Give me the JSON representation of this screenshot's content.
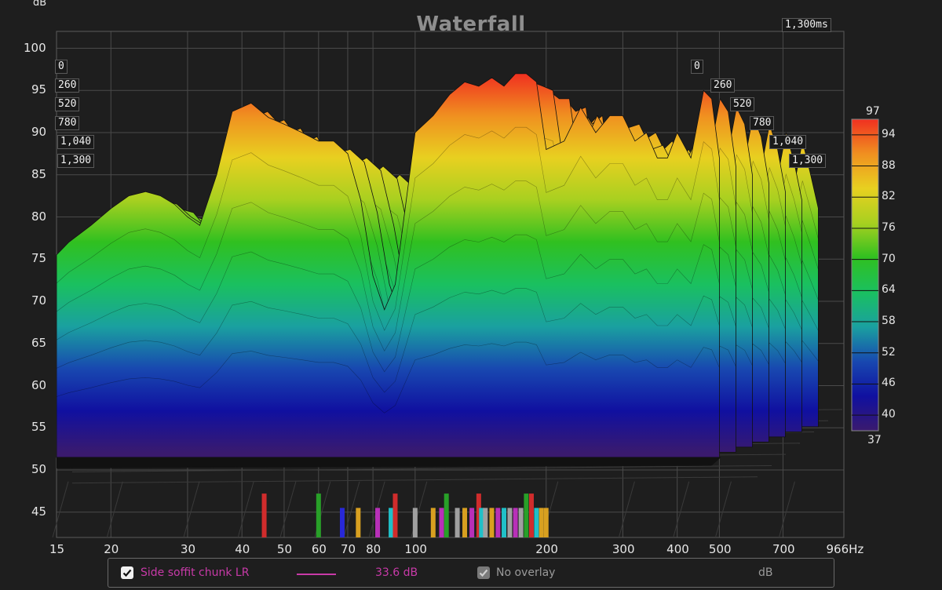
{
  "chart_data": {
    "type": "waterfall",
    "title": "Waterfall",
    "ylabel": "dB",
    "xunit": "Hz",
    "zunit": "ms",
    "x_scale": "log",
    "xlim": [
      15,
      966
    ],
    "ylim": [
      42,
      102
    ],
    "x_ticks": [
      "15",
      "20",
      "30",
      "40",
      "50",
      "60",
      "70",
      "80",
      "100",
      "200",
      "300",
      "400",
      "500",
      "700",
      "966Hz"
    ],
    "y_ticks": [
      "45",
      "50",
      "55",
      "60",
      "65",
      "70",
      "75",
      "80",
      "85",
      "90",
      "95",
      "100"
    ],
    "time_ticks": [
      "0",
      "260",
      "520",
      "780",
      "1,040",
      "1,300"
    ],
    "time_max_label": "1,300ms",
    "colorbar": {
      "range": [
        37,
        97
      ],
      "max_label": "97",
      "min_label": "37",
      "ticks": [
        "94",
        "88",
        "82",
        "76",
        "70",
        "64",
        "58",
        "52",
        "46",
        "40"
      ]
    },
    "front_slice": {
      "time_ms": 0,
      "freq": [
        15,
        16,
        18,
        20,
        22,
        24,
        26,
        28,
        30,
        32,
        35,
        38,
        42,
        46,
        50,
        55,
        60,
        65,
        70,
        75,
        80,
        85,
        90,
        100,
        110,
        120,
        130,
        140,
        150,
        160,
        170,
        180,
        190,
        200,
        220,
        240,
        260,
        280,
        300,
        320,
        340,
        360,
        380,
        400,
        430,
        460,
        480,
        500
      ],
      "db": [
        75.5,
        77,
        79,
        81,
        82.5,
        83,
        82.5,
        81.5,
        80,
        79,
        85,
        92.5,
        93.5,
        91.8,
        91,
        90,
        89,
        89,
        87.5,
        82,
        73,
        69,
        72,
        90,
        92,
        94.5,
        96,
        95.5,
        96.5,
        95.5,
        97,
        97,
        96,
        88,
        89,
        93,
        90,
        92,
        92,
        89,
        90,
        87,
        87,
        90,
        87,
        95,
        94,
        87
      ]
    },
    "peaks": [
      {
        "freq": 20,
        "db": 83
      },
      {
        "freq": 35,
        "db": 93.5
      },
      {
        "freq": 150,
        "db": 96.5
      },
      {
        "freq": 175,
        "db": 97
      },
      {
        "freq": 260,
        "db": 93
      },
      {
        "freq": 480,
        "db": 94
      }
    ],
    "resonance_markers": [
      {
        "freq": 45,
        "color": "#d02c2c",
        "tall": true
      },
      {
        "freq": 60,
        "color": "#28a028",
        "tall": true
      },
      {
        "freq": 68,
        "color": "#2828d8",
        "tall": false
      },
      {
        "freq": 74,
        "color": "#d8a020",
        "tall": false
      },
      {
        "freq": 82,
        "color": "#b830b8",
        "tall": false
      },
      {
        "freq": 88,
        "color": "#20c0c8",
        "tall": false
      },
      {
        "freq": 90,
        "color": "#d02c2c",
        "tall": true
      },
      {
        "freq": 100,
        "color": "#a0a0a0",
        "tall": false
      },
      {
        "freq": 110,
        "color": "#d8a020",
        "tall": false
      },
      {
        "freq": 115,
        "color": "#b830b8",
        "tall": false
      },
      {
        "freq": 118,
        "color": "#28a028",
        "tall": true
      },
      {
        "freq": 125,
        "color": "#a0a0a0",
        "tall": false
      },
      {
        "freq": 130,
        "color": "#d8a020",
        "tall": false
      },
      {
        "freq": 135,
        "color": "#b830b8",
        "tall": false
      },
      {
        "freq": 140,
        "color": "#d02c2c",
        "tall": true
      },
      {
        "freq": 142,
        "color": "#20c0c8",
        "tall": false
      },
      {
        "freq": 145,
        "color": "#a0a0a0",
        "tall": false
      },
      {
        "freq": 150,
        "color": "#d8a020",
        "tall": false
      },
      {
        "freq": 155,
        "color": "#b830b8",
        "tall": false
      },
      {
        "freq": 160,
        "color": "#20c0c8",
        "tall": false
      },
      {
        "freq": 165,
        "color": "#a0a0a0",
        "tall": false
      },
      {
        "freq": 170,
        "color": "#b830b8",
        "tall": false
      },
      {
        "freq": 175,
        "color": "#a0a0a0",
        "tall": false
      },
      {
        "freq": 180,
        "color": "#28a028",
        "tall": true
      },
      {
        "freq": 185,
        "color": "#d02c2c",
        "tall": true
      },
      {
        "freq": 190,
        "color": "#20c0c8",
        "tall": false
      },
      {
        "freq": 195,
        "color": "#d8a020",
        "tall": false
      },
      {
        "freq": 200,
        "color": "#d8a020",
        "tall": false
      }
    ],
    "colors": {
      "background": "#1e1e1e",
      "grid": "#4a4a4a",
      "series": "#c83aa8",
      "colormap": [
        "#3a1a6e",
        "#1010a0",
        "#1848b0",
        "#1aa0a0",
        "#1ac060",
        "#30c020",
        "#a8d020",
        "#e8d020",
        "#f09020",
        "#f03020"
      ]
    }
  },
  "legend": {
    "series_name": "Side soffit chunk LR",
    "series_value": "33.6 dB",
    "overlay_label": "No overlay",
    "unit_label": "dB"
  }
}
